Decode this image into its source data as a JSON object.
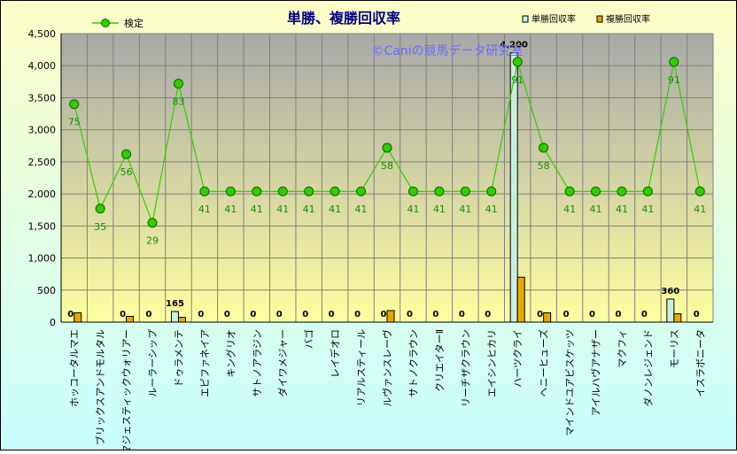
{
  "chart_data": {
    "type": "bar",
    "title": "単勝、複勝回収率",
    "watermark": "©Caniの競馬データ研究室",
    "categories": [
      "ホッコータルマエ",
      "ブリックスアンドモルタル",
      "マジェスティックウォリアー",
      "ルーラーシップ",
      "ドゥラメンテ",
      "エピファネイア",
      "キングリオ",
      "サトノアラジン",
      "ダイワメジャー",
      "バゴ",
      "レイデオロ",
      "リアルスティール",
      "ルヴァンスレーヴ",
      "サトノクラウン",
      "クリエイターⅡ",
      "リーチザクラウン",
      "エイシンヒカリ",
      "ハーツクライ",
      "ヘニーヒューズ",
      "マインドユアビスケッツ",
      "アイルハヴアナザー",
      "マクフィ",
      "ダノンレジェンド",
      "モーリス",
      "イスラボニータ"
    ],
    "series": [
      {
        "name": "単勝回収率",
        "type": "bar",
        "color": "#c8f0e0",
        "values": [
          0,
          0,
          0,
          0,
          165,
          0,
          0,
          0,
          0,
          0,
          0,
          0,
          0,
          0,
          0,
          0,
          0,
          4200,
          0,
          0,
          0,
          0,
          0,
          360,
          0
        ]
      },
      {
        "name": "複勝回収率",
        "type": "bar",
        "color": "#e8a800",
        "values": [
          145,
          0,
          90,
          0,
          75,
          0,
          0,
          0,
          0,
          0,
          0,
          0,
          180,
          0,
          0,
          0,
          0,
          700,
          145,
          0,
          0,
          0,
          0,
          130,
          0
        ]
      },
      {
        "name": "検定",
        "type": "line",
        "color": "#33cc00",
        "values": [
          3400,
          1770,
          2620,
          1550,
          3720,
          2040,
          2040,
          2040,
          2040,
          2040,
          2040,
          2040,
          2720,
          2040,
          2040,
          2040,
          2040,
          4060,
          2720,
          2040,
          2040,
          2040,
          2040,
          4060,
          2040
        ],
        "labels": [
          "75",
          "35",
          "56",
          "29",
          "83",
          "41",
          "41",
          "41",
          "41",
          "41",
          "41",
          "41",
          "58",
          "41",
          "41",
          "41",
          "41",
          "91",
          "58",
          "41",
          "41",
          "41",
          "41",
          "91",
          "41"
        ]
      }
    ],
    "bar_labels": [
      "0",
      "",
      "0",
      "0",
      "165",
      "0",
      "0",
      "0",
      "0",
      "0",
      "0",
      "0",
      "0",
      "0",
      "0",
      "0",
      "0",
      "4,200",
      "0",
      "0",
      "0",
      "0",
      "0",
      "360",
      "0"
    ],
    "ylim": [
      0,
      4500
    ],
    "yticks": [
      "0",
      "500",
      "1,000",
      "1,500",
      "2,000",
      "2,500",
      "3,000",
      "3,500",
      "4,000",
      "4,500"
    ],
    "grid": true,
    "legend": {
      "line_label": "検定",
      "bar1_label": "単勝回収率",
      "bar2_label": "複勝回収率"
    }
  },
  "colors": {
    "bg_top": "#fefec8",
    "bg_bottom": "#c8fefe",
    "plot_top": "#a8a8a8",
    "plot_bottom": "#fefea0",
    "title": "#000080",
    "watermark": "#6a6aff"
  }
}
